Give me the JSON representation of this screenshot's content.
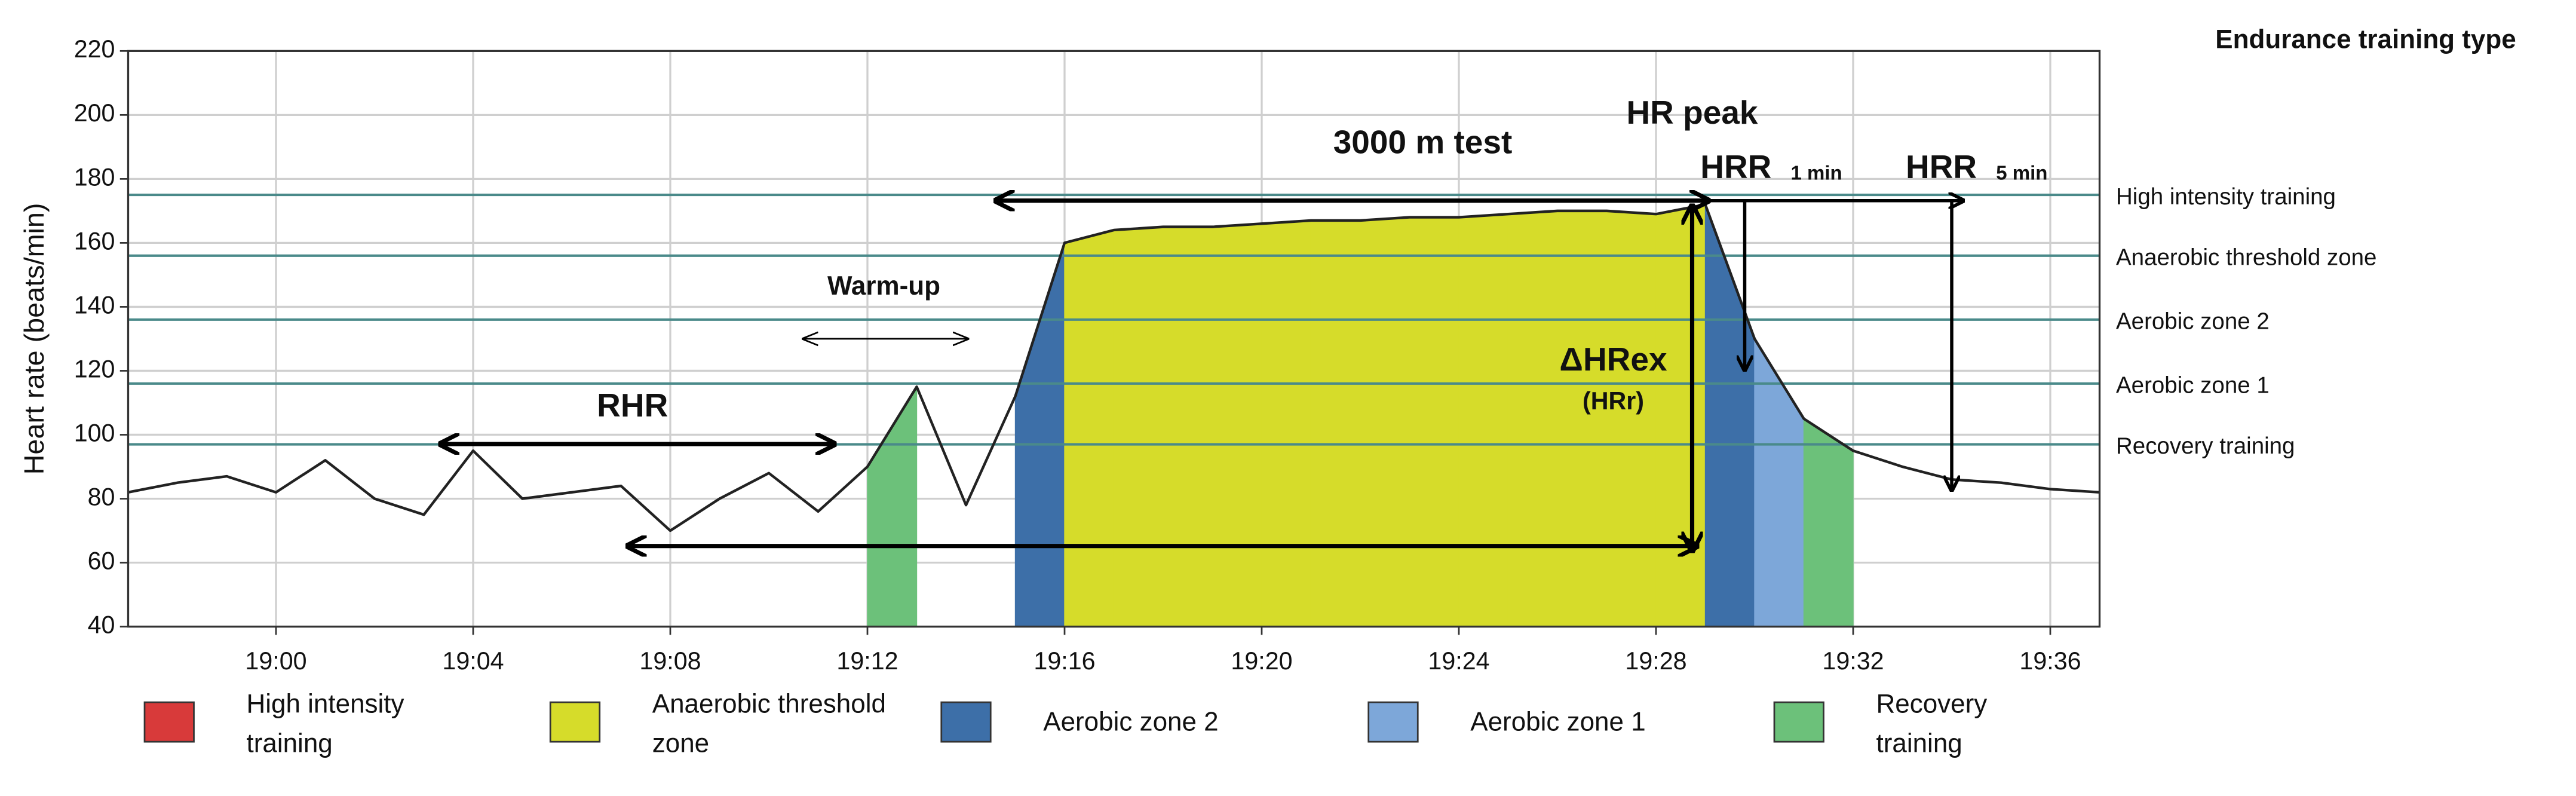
{
  "chart_data": {
    "type": "line",
    "title": "Endurance training type",
    "y_label": "Heart rate (beats/min)",
    "x": [
      "18:57",
      "18:58",
      "18:59",
      "19:00",
      "19:01",
      "19:02",
      "19:03",
      "19:04",
      "19:05",
      "19:06",
      "19:07",
      "19:08",
      "19:09",
      "19:10",
      "19:11",
      "19:12",
      "19:13",
      "19:14",
      "19:15",
      "19:16",
      "19:17",
      "19:18",
      "19:19",
      "19:20",
      "19:21",
      "19:22",
      "19:23",
      "19:24",
      "19:25",
      "19:26",
      "19:27",
      "19:28",
      "19:29",
      "19:30",
      "19:31",
      "19:32",
      "19:33",
      "19:34",
      "19:35",
      "19:36",
      "19:37"
    ],
    "values": [
      82,
      85,
      87,
      82,
      92,
      80,
      75,
      95,
      80,
      82,
      84,
      70,
      80,
      88,
      76,
      90,
      115,
      78,
      112,
      160,
      164,
      165,
      165,
      166,
      167,
      167,
      168,
      168,
      169,
      170,
      170,
      169,
      172,
      130,
      105,
      95,
      90,
      86,
      85,
      83,
      82
    ],
    "color": "#222222",
    "xlim": [
      "18:57",
      "19:37"
    ],
    "xticks": [
      "19:00",
      "19:04",
      "19:08",
      "19:12",
      "19:16",
      "19:20",
      "19:24",
      "19:28",
      "19:32",
      "19:36"
    ],
    "ylim": [
      40,
      220
    ],
    "yticks": [
      40,
      60,
      80,
      100,
      120,
      140,
      160,
      180,
      200,
      220
    ],
    "grid": true,
    "zones": [
      {
        "name": "High intensity training",
        "value": 175,
        "color": "#d83a3a"
      },
      {
        "name": "Anaerobic threshold zone",
        "value": 156,
        "color": "#d6dc2a"
      },
      {
        "name": "Aerobic zone 2",
        "value": 136,
        "color": "#3d6fa8"
      },
      {
        "name": "Aerobic zone 1",
        "value": 116,
        "color": "#7da7d9"
      },
      {
        "name": "Recovery training",
        "value": 97,
        "color": "#6cc17a"
      }
    ],
    "annotations": {
      "test": "3000 m test",
      "hr_peak": "HR peak",
      "hrr1": "HRR",
      "hrr1_sub": "1 min",
      "hrr5": "HRR",
      "hrr5_sub": "5 min",
      "warmup": "Warm-up",
      "rhr": "RHR",
      "dhrex": "ΔHRex",
      "hrr_paren": "(HRr)"
    }
  }
}
